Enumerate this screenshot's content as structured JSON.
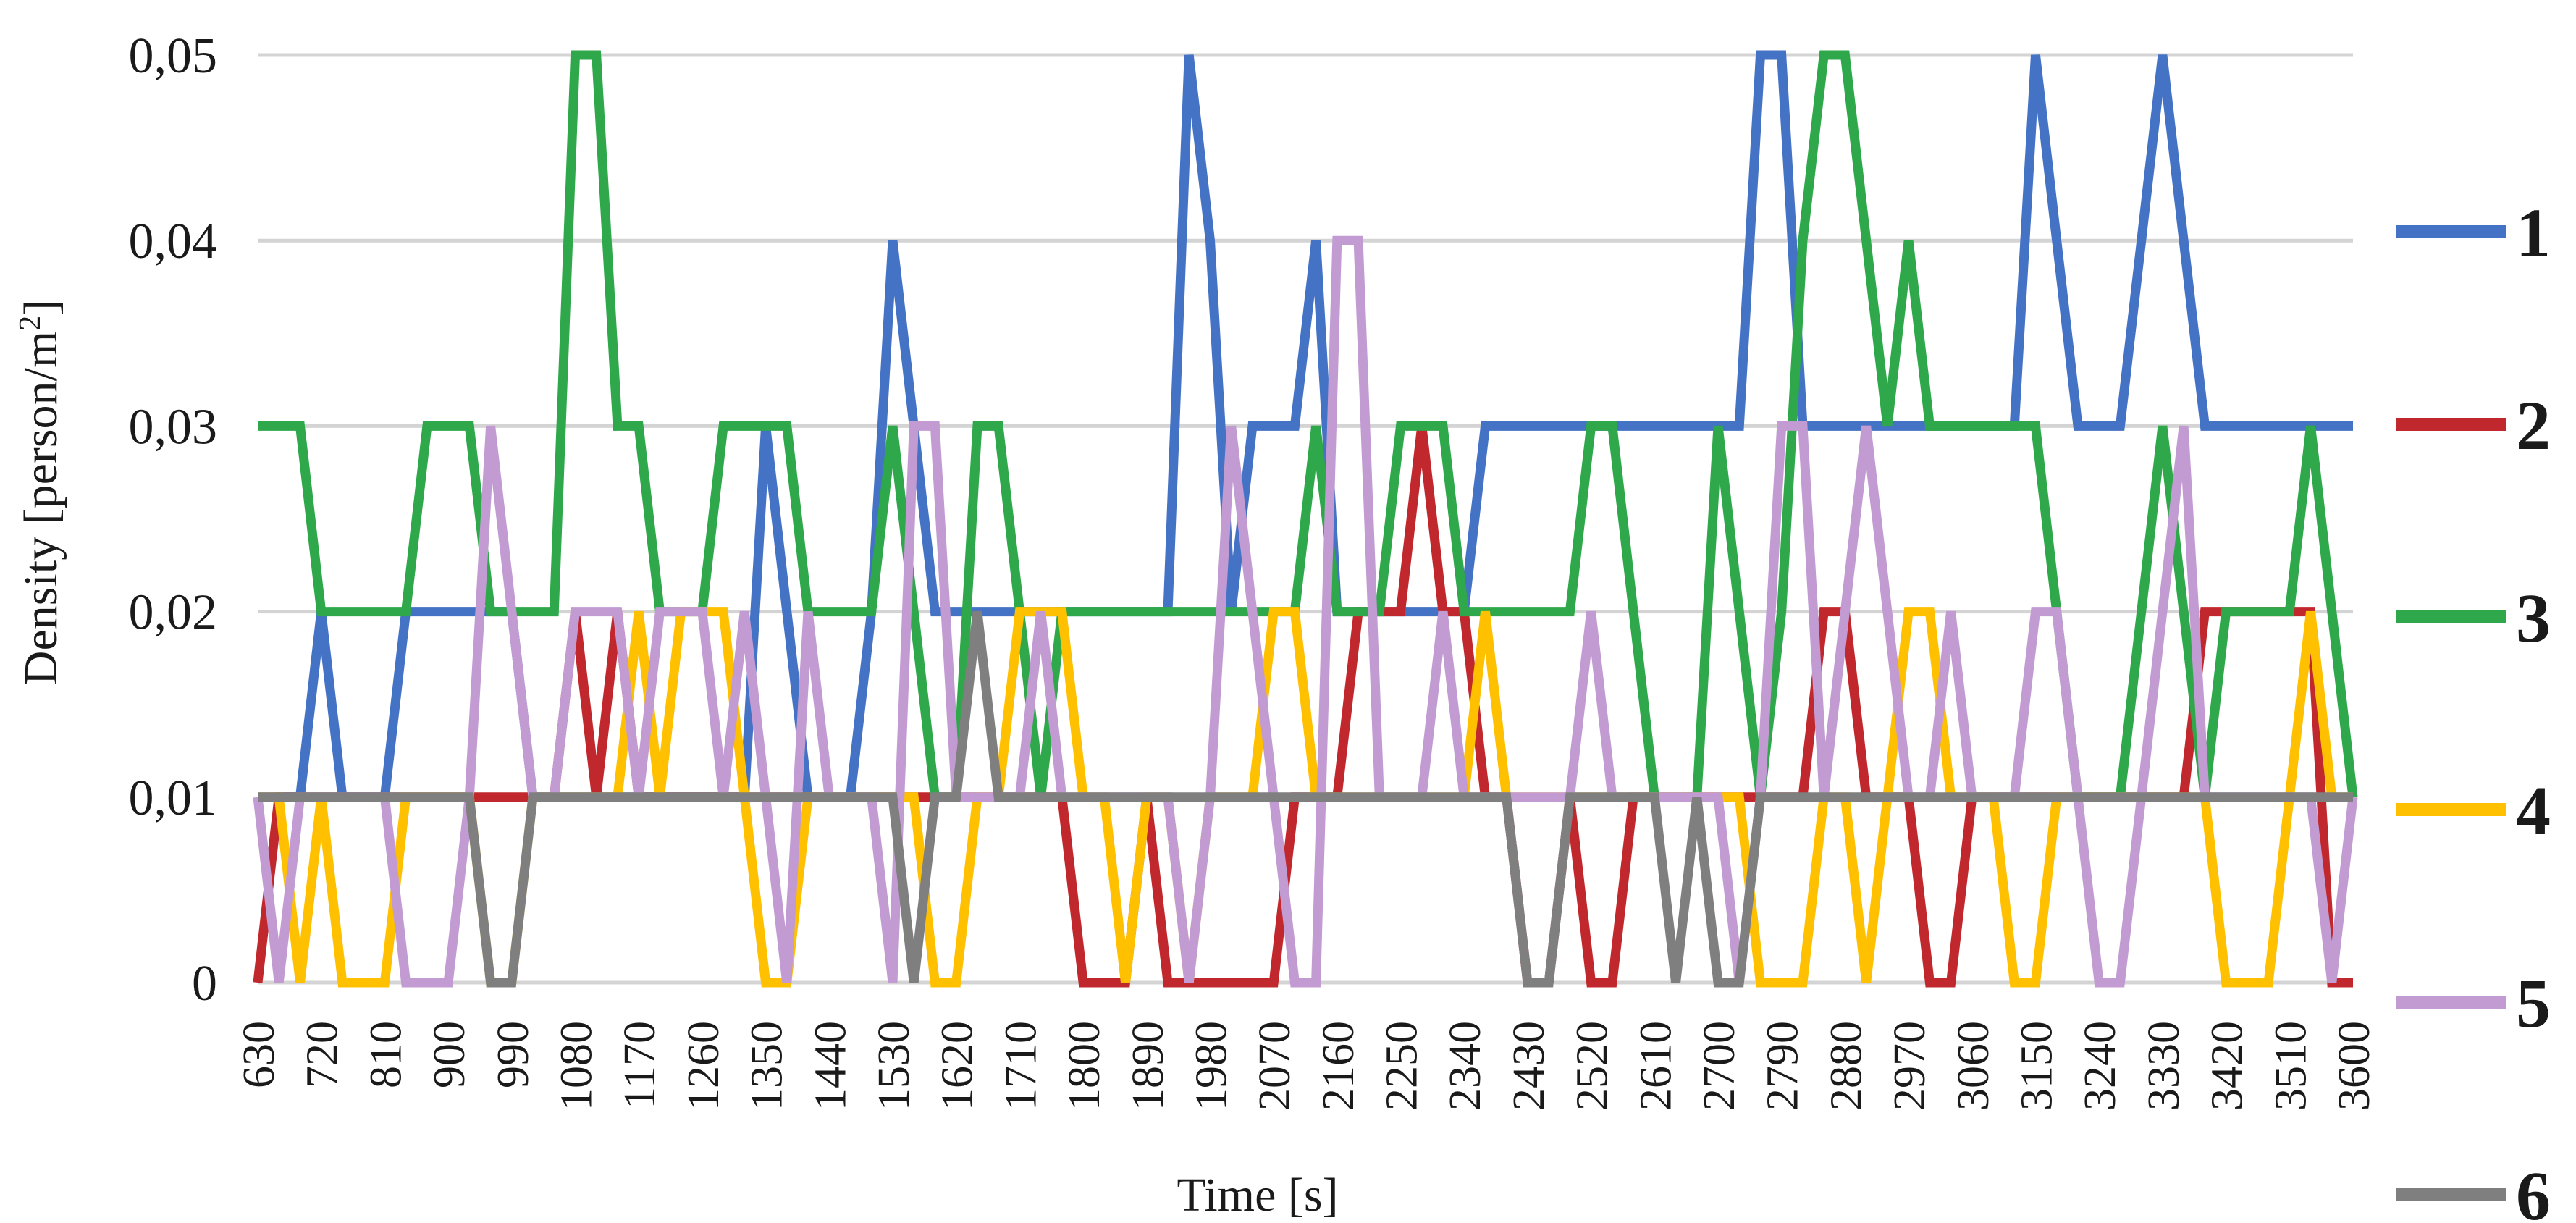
{
  "chart_data": {
    "type": "line",
    "xlabel": "Time [s]",
    "ylabel": "Density [person/m2]",
    "ylabel_main": "Density [person/m",
    "ylabel_sup": "2",
    "ylabel_end": "]",
    "ylim": [
      0,
      0.05
    ],
    "yticks": [
      0,
      0.01,
      0.02,
      0.03,
      0.04,
      0.05
    ],
    "ytick_labels": [
      "0",
      "0,01",
      "0,02",
      "0,03",
      "0,04",
      "0,05"
    ],
    "x_tick_labels": [
      "630",
      "720",
      "810",
      "900",
      "990",
      "1080",
      "1170",
      "1260",
      "1350",
      "1440",
      "1530",
      "1620",
      "1710",
      "1800",
      "1890",
      "1980",
      "2070",
      "2160",
      "2250",
      "2340",
      "2430",
      "2520",
      "2610",
      "2700",
      "2790",
      "2880",
      "2970",
      "3060",
      "3150",
      "3240",
      "3330",
      "3420",
      "3510",
      "3600"
    ],
    "x_tick_step": 3,
    "x": [
      630,
      660,
      690,
      720,
      750,
      780,
      810,
      840,
      870,
      900,
      930,
      960,
      990,
      1020,
      1050,
      1080,
      1110,
      1140,
      1170,
      1200,
      1230,
      1260,
      1290,
      1320,
      1350,
      1380,
      1410,
      1440,
      1470,
      1500,
      1530,
      1560,
      1590,
      1620,
      1650,
      1680,
      1710,
      1740,
      1770,
      1800,
      1830,
      1860,
      1890,
      1920,
      1950,
      1980,
      2010,
      2040,
      2070,
      2100,
      2130,
      2160,
      2190,
      2220,
      2250,
      2280,
      2310,
      2340,
      2370,
      2400,
      2430,
      2460,
      2490,
      2520,
      2550,
      2580,
      2610,
      2640,
      2670,
      2700,
      2730,
      2760,
      2790,
      2820,
      2850,
      2880,
      2910,
      2940,
      2970,
      3000,
      3030,
      3060,
      3090,
      3120,
      3150,
      3180,
      3210,
      3240,
      3270,
      3300,
      3330,
      3360,
      3390,
      3420,
      3450,
      3480,
      3510,
      3540,
      3570,
      3600
    ],
    "grid": true,
    "legend_position": "right",
    "series": [
      {
        "name": "1",
        "color": "#4472C4",
        "values": [
          0.01,
          0.01,
          0.01,
          0.02,
          0.01,
          0.01,
          0.01,
          0.02,
          0.02,
          0.02,
          0.02,
          0.02,
          0.02,
          0.01,
          0.01,
          0.01,
          0.01,
          0.01,
          0.01,
          0.01,
          0.01,
          0.01,
          0.01,
          0.01,
          0.03,
          0.02,
          0.01,
          0.01,
          0.01,
          0.02,
          0.04,
          0.03,
          0.02,
          0.02,
          0.02,
          0.02,
          0.02,
          0.02,
          0.02,
          0.02,
          0.02,
          0.02,
          0.02,
          0.02,
          0.05,
          0.04,
          0.02,
          0.03,
          0.03,
          0.03,
          0.04,
          0.02,
          0.02,
          0.02,
          0.02,
          0.02,
          0.02,
          0.02,
          0.03,
          0.03,
          0.03,
          0.03,
          0.03,
          0.03,
          0.03,
          0.03,
          0.03,
          0.03,
          0.03,
          0.03,
          0.03,
          0.05,
          0.05,
          0.03,
          0.03,
          0.03,
          0.03,
          0.03,
          0.03,
          0.03,
          0.03,
          0.03,
          0.03,
          0.03,
          0.05,
          0.04,
          0.03,
          0.03,
          0.03,
          0.04,
          0.05,
          0.04,
          0.03,
          0.03,
          0.03,
          0.03,
          0.03,
          0.03,
          0.03,
          0.03
        ]
      },
      {
        "name": "2",
        "color": "#C0282D",
        "values": [
          0,
          0.01,
          0.01,
          0.01,
          0.01,
          0.01,
          0.01,
          0.01,
          0.01,
          0.01,
          0.01,
          0.01,
          0.01,
          0.01,
          0.01,
          0.02,
          0.01,
          0.02,
          0.01,
          0.01,
          0.01,
          0.01,
          0.01,
          0.01,
          0.01,
          0.01,
          0.01,
          0.01,
          0.01,
          0.01,
          0.01,
          0.01,
          0.01,
          0.01,
          0.01,
          0.01,
          0.01,
          0.01,
          0.01,
          0,
          0,
          0,
          0.01,
          0,
          0,
          0,
          0,
          0,
          0,
          0.01,
          0.01,
          0.01,
          0.02,
          0.02,
          0.02,
          0.03,
          0.02,
          0.02,
          0.01,
          0.01,
          0,
          0,
          0.01,
          0,
          0,
          0.01,
          0.01,
          0.01,
          0.01,
          0.01,
          0.01,
          0.01,
          0.01,
          0.01,
          0.02,
          0.02,
          0.01,
          0.01,
          0.01,
          0,
          0,
          0.01,
          0.01,
          0.01,
          0.01,
          0.01,
          0.01,
          0.01,
          0.01,
          0.01,
          0.01,
          0.01,
          0.02,
          0.02,
          0.02,
          0.02,
          0.02,
          0.02,
          0,
          0
        ]
      },
      {
        "name": "3",
        "color": "#2EA84A",
        "values": [
          0.03,
          0.03,
          0.03,
          0.02,
          0.02,
          0.02,
          0.02,
          0.02,
          0.03,
          0.03,
          0.03,
          0.02,
          0.02,
          0.02,
          0.02,
          0.05,
          0.05,
          0.03,
          0.03,
          0.02,
          0.02,
          0.02,
          0.03,
          0.03,
          0.03,
          0.03,
          0.02,
          0.02,
          0.02,
          0.02,
          0.03,
          0.02,
          0.01,
          0.01,
          0.03,
          0.03,
          0.02,
          0.01,
          0.02,
          0.02,
          0.02,
          0.02,
          0.02,
          0.02,
          0.02,
          0.02,
          0.02,
          0.02,
          0.02,
          0.02,
          0.03,
          0.02,
          0.02,
          0.02,
          0.03,
          0.03,
          0.03,
          0.02,
          0.02,
          0.02,
          0.02,
          0.02,
          0.02,
          0.03,
          0.03,
          0.02,
          0.01,
          0.01,
          0.01,
          0.03,
          0.02,
          0.01,
          0.02,
          0.04,
          0.05,
          0.05,
          0.04,
          0.03,
          0.04,
          0.03,
          0.03,
          0.03,
          0.03,
          0.03,
          0.03,
          0.02,
          0.01,
          0.01,
          0.01,
          0.02,
          0.03,
          0.02,
          0.01,
          0.02,
          0.02,
          0.02,
          0.02,
          0.03,
          0.02,
          0.01
        ]
      },
      {
        "name": "4",
        "color": "#FFC000",
        "values": [
          0.01,
          0.01,
          0,
          0.01,
          0,
          0,
          0,
          0.01,
          0.01,
          0.01,
          0.01,
          0,
          0,
          0.01,
          0.01,
          0.01,
          0.01,
          0.01,
          0.02,
          0.01,
          0.02,
          0.02,
          0.02,
          0.01,
          0,
          0,
          0.01,
          0.01,
          0.01,
          0.01,
          0.01,
          0.01,
          0,
          0,
          0.01,
          0.01,
          0.02,
          0.02,
          0.02,
          0.01,
          0.01,
          0,
          0.01,
          0.01,
          0,
          0.01,
          0.01,
          0.01,
          0.02,
          0.02,
          0.01,
          0.01,
          0.01,
          0.01,
          0.01,
          0.01,
          0.01,
          0.01,
          0.02,
          0.01,
          0.01,
          0.01,
          0.01,
          0.01,
          0.01,
          0.01,
          0.01,
          0.01,
          0.01,
          0.01,
          0.01,
          0,
          0,
          0,
          0.01,
          0.01,
          0,
          0.01,
          0.02,
          0.02,
          0.01,
          0.01,
          0.01,
          0,
          0,
          0.01,
          0.01,
          0.01,
          0.01,
          0.01,
          0.01,
          0.01,
          0.01,
          0,
          0,
          0,
          0.01,
          0.02,
          0.01,
          0.01
        ]
      },
      {
        "name": "5",
        "color": "#C39BD3",
        "values": [
          0.01,
          0,
          0.01,
          0.01,
          0.01,
          0.01,
          0.01,
          0,
          0,
          0,
          0.01,
          0.03,
          0.02,
          0.01,
          0.01,
          0.02,
          0.02,
          0.02,
          0.01,
          0.02,
          0.02,
          0.02,
          0.01,
          0.02,
          0.01,
          0,
          0.02,
          0.01,
          0.01,
          0.01,
          0,
          0.03,
          0.03,
          0.01,
          0.01,
          0.01,
          0.01,
          0.02,
          0.01,
          0.01,
          0.01,
          0.01,
          0.01,
          0.01,
          0,
          0.01,
          0.03,
          0.02,
          0.01,
          0,
          0,
          0.04,
          0.04,
          0.01,
          0.01,
          0.01,
          0.02,
          0.01,
          0.01,
          0.01,
          0.01,
          0.01,
          0.01,
          0.02,
          0.01,
          0.01,
          0.01,
          0.01,
          0.01,
          0.01,
          0,
          0.01,
          0.03,
          0.03,
          0.01,
          0.02,
          0.03,
          0.02,
          0.01,
          0.01,
          0.02,
          0.01,
          0.01,
          0.01,
          0.02,
          0.02,
          0.01,
          0,
          0,
          0.01,
          0.02,
          0.03,
          0.01,
          0.01,
          0.01,
          0.01,
          0.01,
          0.01,
          0,
          0.01
        ]
      },
      {
        "name": "6",
        "color": "#7F7F7F",
        "values": [
          0.01,
          0.01,
          0.01,
          0.01,
          0.01,
          0.01,
          0.01,
          0.01,
          0.01,
          0.01,
          0.01,
          0,
          0,
          0.01,
          0.01,
          0.01,
          0.01,
          0.01,
          0.01,
          0.01,
          0.01,
          0.01,
          0.01,
          0.01,
          0.01,
          0.01,
          0.01,
          0.01,
          0.01,
          0.01,
          0.01,
          0,
          0.01,
          0.01,
          0.02,
          0.01,
          0.01,
          0.01,
          0.01,
          0.01,
          0.01,
          0.01,
          0.01,
          0.01,
          0.01,
          0.01,
          0.01,
          0.01,
          0.01,
          0.01,
          0.01,
          0.01,
          0.01,
          0.01,
          0.01,
          0.01,
          0.01,
          0.01,
          0.01,
          0.01,
          0,
          0,
          0.01,
          0.01,
          0.01,
          0.01,
          0.01,
          0,
          0.01,
          0,
          0,
          0.01,
          0.01,
          0.01,
          0.01,
          0.01,
          0.01,
          0.01,
          0.01,
          0.01,
          0.01,
          0.01,
          0.01,
          0.01,
          0.01,
          0.01,
          0.01,
          0.01,
          0.01,
          0.01,
          0.01,
          0.01,
          0.01,
          0.01,
          0.01,
          0.01,
          0.01,
          0.01,
          0.01,
          0.01
        ]
      }
    ]
  }
}
